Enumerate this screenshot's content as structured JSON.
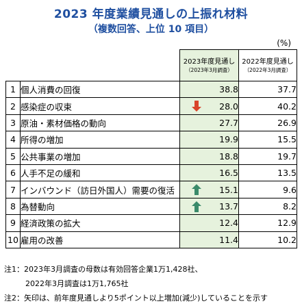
{
  "title": "2023 年度業績見通しの上振れ材料",
  "subtitle": "（複数回答、上位 10 項目）",
  "unit": "(%)",
  "columns": {
    "fy2023": {
      "label": "2023年度見通し",
      "sub": "（2023年3月調査）"
    },
    "fy2022": {
      "label": "2022年度見通し",
      "sub": "（2022年3月調査）"
    }
  },
  "colors": {
    "highlight_bg": "#e6f2dd",
    "title": "#1f4fa0",
    "arrow_up": "#3a8a6a",
    "arrow_down": "#d9442a"
  },
  "chart_data": {
    "type": "table",
    "title": "2023 年度業績見通しの上振れ材料",
    "unit": "%",
    "rows": [
      {
        "rank": "1",
        "item": "個人消費の回復",
        "v2023": "38.8",
        "v2022": "37.7",
        "arrow": ""
      },
      {
        "rank": "2",
        "item": "感染症の収束",
        "v2023": "28.0",
        "v2022": "40.2",
        "arrow": "down"
      },
      {
        "rank": "3",
        "item": "原油・素材価格の動向",
        "v2023": "27.7",
        "v2022": "26.9",
        "arrow": ""
      },
      {
        "rank": "4",
        "item": "所得の増加",
        "v2023": "19.9",
        "v2022": "15.5",
        "arrow": ""
      },
      {
        "rank": "5",
        "item": "公共事業の増加",
        "v2023": "18.8",
        "v2022": "19.7",
        "arrow": ""
      },
      {
        "rank": "6",
        "item": "人手不足の緩和",
        "v2023": "16.5",
        "v2022": "13.5",
        "arrow": ""
      },
      {
        "rank": "7",
        "item": "インバウンド（訪日外国人）需要の復活",
        "v2023": "15.1",
        "v2022": "9.6",
        "arrow": "up"
      },
      {
        "rank": "8",
        "item": "為替動向",
        "v2023": "13.7",
        "v2022": "8.2",
        "arrow": "up"
      },
      {
        "rank": "9",
        "item": "経済政策の拡大",
        "v2023": "12.4",
        "v2022": "12.9",
        "arrow": ""
      },
      {
        "rank": "10",
        "item": "雇用の改善",
        "v2023": "11.4",
        "v2022": "10.2",
        "arrow": ""
      }
    ]
  },
  "notes": {
    "note1_line1": "注1：2023年3月調査の母数は有効回答企業1万1,428社、",
    "note1_line2": "2022年3月調査は1万1,765社",
    "note2": "注2：矢印は、前年度見通しより5ポイント以上増加(減少)していることを示す"
  }
}
